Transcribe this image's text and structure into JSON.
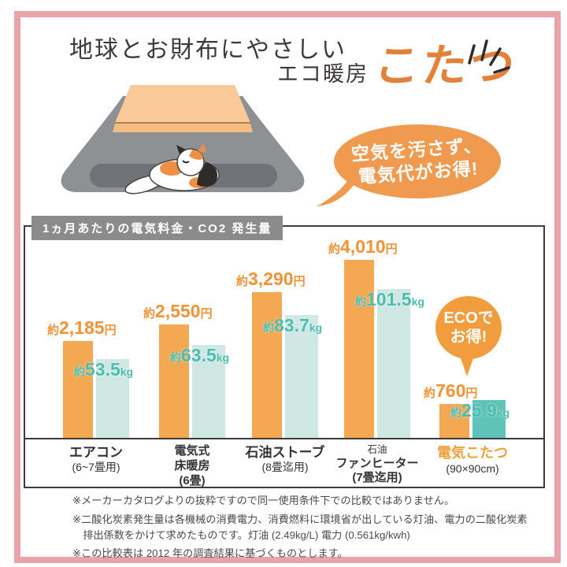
{
  "page": {
    "title_line": "地球とお財布にやさしい",
    "subtitle_prefix": "エコ暖房",
    "subtitle_accent": "こたつ",
    "speech_bubble": {
      "line1": "空気を汚さず、",
      "line2": "電気代がお得!"
    },
    "colors": {
      "accent_orange": "#ef9a4f",
      "bar_orange": "#f3a851",
      "bar_teal": "#cfe8e3",
      "bar_teal_highlight": "#5fc3b9",
      "teal_text": "#4cbcb1",
      "frame_pink": "#eba3ab",
      "header_gray": "#8b8b8b"
    },
    "icons": [
      "sparkle-icon",
      "speech-bubble",
      "kotatsu-cat-illustration",
      "eco-badge"
    ]
  },
  "chart": {
    "header_label": "1ヵ月あたりの電気料金・CO2 発生量",
    "eco_badge": {
      "line1": "ECOで",
      "line2": "お得!"
    }
  },
  "chart_data": {
    "type": "bar",
    "title": "1ヵ月あたりの電気料金・CO2 発生量",
    "categories": [
      "エアコン (6~7畳用)",
      "電気式床暖房 (6畳)",
      "石油ストーブ (8畳迄用)",
      "石油ファンヒーター (7畳迄用)",
      "電気こたつ (90×90cm)"
    ],
    "series": [
      {
        "name": "電気料金(円/月)",
        "values": [
          2185,
          2550,
          3290,
          4010,
          760
        ],
        "color": "#f3a851"
      },
      {
        "name": "CO2発生量(kg/月)",
        "values": [
          53.5,
          63.5,
          83.7,
          101.5,
          25.9
        ],
        "color": "#cfe8e3",
        "highlight_color": "#5fc3b9"
      }
    ],
    "legend": "none",
    "grid": false,
    "ymax_price_yen": 4010,
    "ymax_co2_kg": 101.5,
    "items": [
      {
        "cost_prefix": "約",
        "cost_text": "2,185",
        "cost_unit": "円",
        "co2_prefix": "約",
        "co2_text": "53.5",
        "co2_unit": "kg",
        "label_lines": [
          "エアコン",
          "(6~7畳用)"
        ],
        "highlight": false
      },
      {
        "cost_prefix": "約",
        "cost_text": "2,550",
        "cost_unit": "円",
        "co2_prefix": "約",
        "co2_text": "63.5",
        "co2_unit": "kg",
        "label_lines": [
          "電気式",
          "床暖房",
          "(6畳)"
        ],
        "highlight": false
      },
      {
        "cost_prefix": "約",
        "cost_text": "3,290",
        "cost_unit": "円",
        "co2_prefix": "約",
        "co2_text": "83.7",
        "co2_unit": "kg",
        "label_lines": [
          "石油ストーブ",
          "(8畳迄用)"
        ],
        "highlight": false
      },
      {
        "cost_prefix": "約",
        "cost_text": "4,010",
        "cost_unit": "円",
        "co2_prefix": "約",
        "co2_text": "101.5",
        "co2_unit": "kg",
        "label_lines": [
          "石油",
          "ファンヒーター",
          "(7畳迄用)"
        ],
        "highlight": false
      },
      {
        "cost_prefix": "約",
        "cost_text": "760",
        "cost_unit": "円",
        "co2_prefix": "約",
        "co2_text": "25.9",
        "co2_unit": "kg",
        "label_lines": [
          "電気こたつ",
          "(90×90cm)"
        ],
        "highlight": true
      }
    ]
  },
  "footnotes": [
    "※メーカーカタログよりの抜粋ですので同一使用条件下での比較ではありません。",
    "※二酸化炭素発生量は各機械の消費電力、消費燃料に環境省が出している灯油、電力の二酸化炭素排出係数をかけて求めたものです。灯油 (2.49kg/L) 電力 (0.561kg/kwh)",
    "※この比較表は 2012 年の調査結果に基づくものとします。"
  ]
}
